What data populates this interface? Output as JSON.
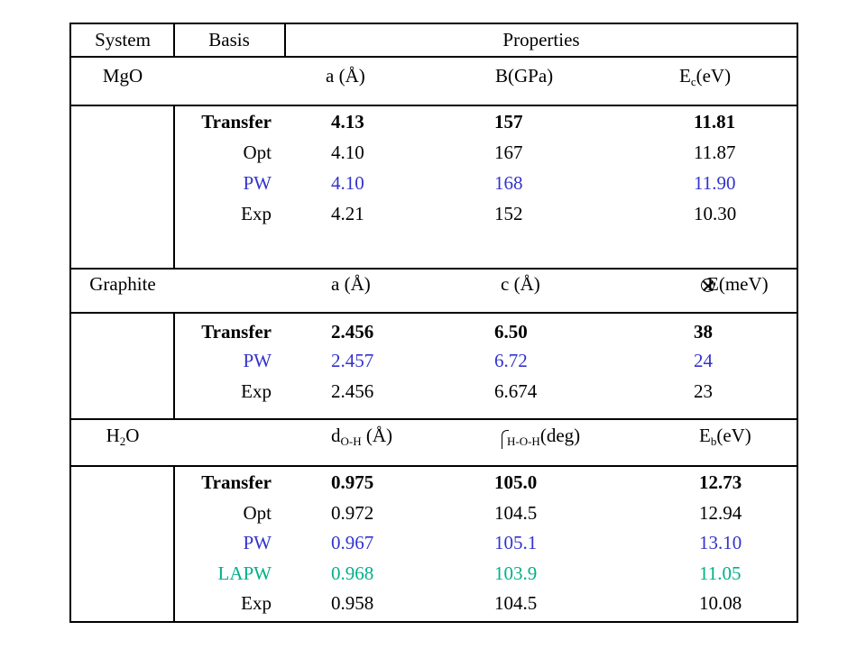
{
  "header": {
    "system": "System",
    "basis": "Basis",
    "properties": "Properties"
  },
  "mgo": {
    "system": "MgO",
    "col_a": "a (Å)",
    "col_b": "B(GPa)",
    "col_c_main": "E",
    "col_c_sub": "c",
    "col_c_rest": "(eV)",
    "rows": [
      {
        "basis": "Transfer",
        "a": "4.13",
        "b": "157",
        "c": "11.81"
      },
      {
        "basis": "Opt",
        "a": "4.10",
        "b": "167",
        "c": "11.87"
      },
      {
        "basis": "PW",
        "a": "4.10",
        "b": "168",
        "c": "11.90"
      },
      {
        "basis": "Exp",
        "a": "4.21",
        "b": "152",
        "c": "10.30"
      }
    ]
  },
  "graphite": {
    "system": "Graphite",
    "col_a": "a (Å)",
    "col_b": "c (Å)",
    "col_c": "E(meV)",
    "rows": [
      {
        "basis": "Transfer",
        "a": "2.456",
        "b": "6.50",
        "c": "38"
      },
      {
        "basis": "PW",
        "a": "2.457",
        "b": "6.72",
        "c": "24"
      },
      {
        "basis": "Exp",
        "a": "2.456",
        "b": "6.674",
        "c": "23"
      }
    ]
  },
  "h2o": {
    "system_main": "H",
    "system_sub": "2",
    "system_rest": "O",
    "col_a_main": "d",
    "col_a_sub": "O-H",
    "col_a_rest": " (Å)",
    "col_b_sub": "H-O-H",
    "col_b_rest": "(deg)",
    "col_c_main": "E",
    "col_c_sub": "b",
    "col_c_rest": "(eV)",
    "rows": [
      {
        "basis": "Transfer",
        "a": "0.975",
        "b": "105.0",
        "c": "12.73"
      },
      {
        "basis": "Opt",
        "a": "0.972",
        "b": "104.5",
        "c": "12.94"
      },
      {
        "basis": "PW",
        "a": "0.967",
        "b": "105.1",
        "c": "13.10"
      },
      {
        "basis": "LAPW",
        "a": "0.968",
        "b": "103.9",
        "c": "11.05"
      },
      {
        "basis": "Exp",
        "a": "0.958",
        "b": "104.5",
        "c": "10.08"
      }
    ]
  },
  "colors": {
    "pw": "#3333cc",
    "lapw": "#00b08a",
    "lines": "#000000"
  }
}
